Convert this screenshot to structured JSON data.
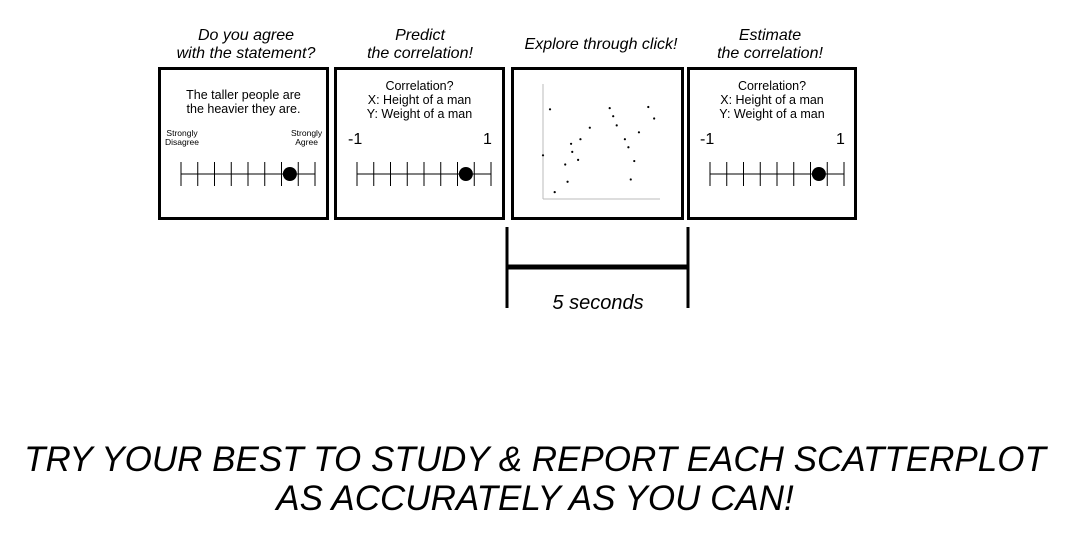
{
  "steps": [
    {
      "title_lines": [
        "Do you agree",
        "with the statement?"
      ],
      "panel": {
        "statement_lines": [
          "The taller people are",
          "the heavier they are."
        ],
        "left_label": [
          "Strongly",
          "Disagree"
        ],
        "right_label": [
          "Strongly",
          "Agree"
        ],
        "selected_fraction": 0.8125
      }
    },
    {
      "title_lines": [
        "Predict",
        "the correlation!"
      ],
      "panel": {
        "prompt_lines": [
          "Correlation?",
          "X: Height of a man",
          "Y: Weight of a man"
        ],
        "left_end": "-1",
        "right_end": "1",
        "selected_fraction": 0.8125
      }
    },
    {
      "title_lines": [
        "Explore through click!"
      ],
      "panel": {
        "scatter_points": [
          [
            0.0,
            0.38
          ],
          [
            0.06,
            0.78
          ],
          [
            0.1,
            0.06
          ],
          [
            0.21,
            0.15
          ],
          [
            0.19,
            0.3
          ],
          [
            0.25,
            0.41
          ],
          [
            0.32,
            0.52
          ],
          [
            0.4,
            0.62
          ],
          [
            0.57,
            0.79
          ],
          [
            0.6,
            0.72
          ],
          [
            0.63,
            0.64
          ],
          [
            0.7,
            0.52
          ],
          [
            0.73,
            0.45
          ],
          [
            0.78,
            0.33
          ],
          [
            0.82,
            0.58
          ],
          [
            0.9,
            0.8
          ],
          [
            0.95,
            0.7
          ],
          [
            0.75,
            0.17
          ],
          [
            0.24,
            0.48
          ],
          [
            0.3,
            0.34
          ]
        ]
      }
    },
    {
      "title_lines": [
        "Estimate",
        "the correlation!"
      ],
      "panel": {
        "prompt_lines": [
          "Correlation?",
          "X: Height of a man",
          "Y: Weight of a man"
        ],
        "left_end": "-1",
        "right_end": "1",
        "selected_fraction": 0.8125
      }
    }
  ],
  "timer": {
    "label": "5 seconds"
  },
  "instruction_lines": [
    "TRY YOUR BEST TO STUDY & REPORT EACH SCATTERPLOT",
    "AS ACCURATELY AS YOU CAN!"
  ]
}
